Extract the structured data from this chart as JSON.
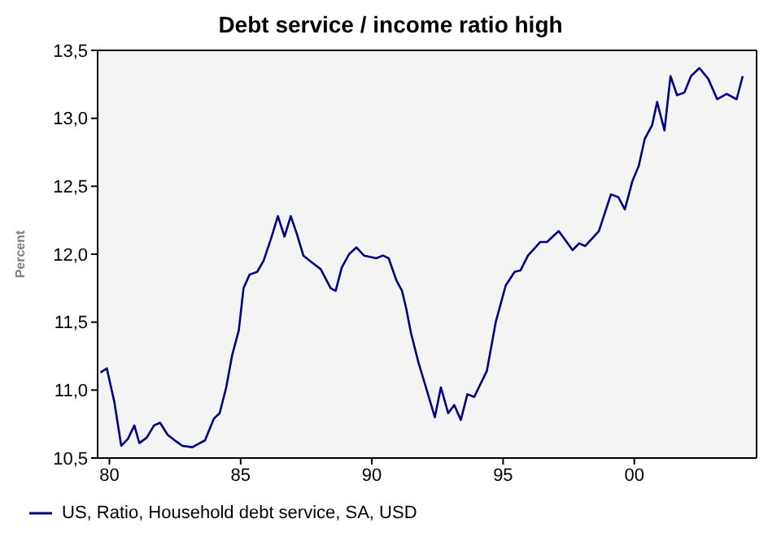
{
  "chart_data": {
    "type": "line",
    "title": "Debt service / income ratio high",
    "ylabel": "Percent",
    "x": [
      1979.66,
      1979.9,
      1980.19,
      1980.45,
      1980.7,
      1980.95,
      1981.14,
      1981.42,
      1981.7,
      1981.93,
      1982.22,
      1982.56,
      1982.78,
      1983.16,
      1983.64,
      1983.98,
      1984.2,
      1984.45,
      1984.68,
      1984.93,
      1985.11,
      1985.34,
      1985.63,
      1985.87,
      1986.15,
      1986.42,
      1986.67,
      1986.91,
      1987.14,
      1987.39,
      1987.71,
      1988.05,
      1988.43,
      1988.62,
      1988.85,
      1989.13,
      1989.41,
      1989.7,
      1990.17,
      1990.42,
      1990.64,
      1990.93,
      1991.15,
      1991.31,
      1991.49,
      1991.78,
      1992.06,
      1992.4,
      1992.63,
      1992.91,
      1993.14,
      1993.39,
      1993.64,
      1993.9,
      1994.38,
      1994.72,
      1995.1,
      1995.44,
      1995.66,
      1995.95,
      1996.42,
      1996.67,
      1997.12,
      1997.65,
      1997.9,
      1998.13,
      1998.65,
      1999.11,
      1999.39,
      1999.64,
      1999.93,
      2000.17,
      2000.4,
      2000.68,
      2000.87,
      2001.15,
      2001.38,
      2001.63,
      2001.91,
      2002.16,
      2002.48,
      2002.82,
      2003.16,
      2003.52,
      2003.9,
      2004.13
    ],
    "series": [
      {
        "name": "US, Ratio, Household debt service, SA, USD",
        "color": "#000080",
        "values": [
          11.13,
          11.16,
          10.91,
          10.59,
          10.64,
          10.74,
          10.61,
          10.65,
          10.74,
          10.76,
          10.67,
          10.62,
          10.59,
          10.58,
          10.63,
          10.79,
          10.83,
          11.02,
          11.26,
          11.44,
          11.75,
          11.85,
          11.87,
          11.95,
          12.11,
          12.28,
          12.13,
          12.28,
          12.15,
          11.99,
          11.94,
          11.89,
          11.75,
          11.73,
          11.9,
          12.0,
          12.05,
          11.99,
          11.97,
          11.99,
          11.97,
          11.81,
          11.73,
          11.6,
          11.42,
          11.2,
          11.02,
          10.8,
          11.02,
          10.83,
          10.89,
          10.78,
          10.97,
          10.95,
          11.14,
          11.5,
          11.77,
          11.87,
          11.88,
          11.99,
          12.09,
          12.09,
          12.17,
          12.03,
          12.08,
          12.06,
          12.17,
          12.44,
          12.42,
          12.33,
          12.54,
          12.65,
          12.85,
          12.95,
          13.12,
          12.91,
          13.31,
          13.17,
          13.19,
          13.31,
          13.37,
          13.29,
          13.14,
          13.18,
          13.14,
          13.31
        ]
      }
    ],
    "xlim": [
      1979.55,
      2004.66
    ],
    "xticks": [
      {
        "value": 1980,
        "label": "80"
      },
      {
        "value": 1985,
        "label": "85"
      },
      {
        "value": 1990,
        "label": "90"
      },
      {
        "value": 1995,
        "label": "95"
      },
      {
        "value": 2000,
        "label": "00"
      }
    ],
    "ylim": [
      10.5,
      13.5
    ],
    "yticks": [
      {
        "value": 10.5,
        "label": "10,5"
      },
      {
        "value": 11,
        "label": "11,0"
      },
      {
        "value": 11.5,
        "label": "11,5"
      },
      {
        "value": 12,
        "label": "12,0"
      },
      {
        "value": 12.5,
        "label": "12,5"
      },
      {
        "value": 13,
        "label": "13,0"
      },
      {
        "value": 13.5,
        "label": "13,5"
      }
    ],
    "legend": "bottom left",
    "marker": "none",
    "line_style": "solid"
  }
}
